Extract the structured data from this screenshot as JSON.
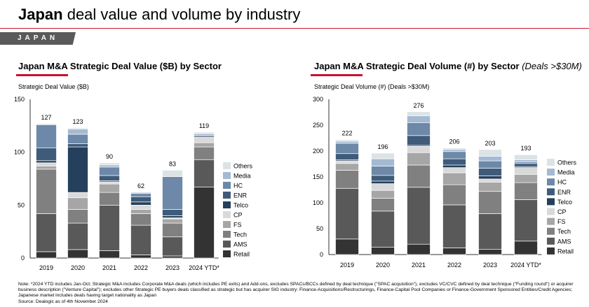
{
  "header": {
    "title_bold": "Japan",
    "title_rest": " deal value and volume by industry",
    "region": "JAPAN"
  },
  "colors": {
    "accent": "#c8102e",
    "Retail": "#333333",
    "AMS": "#595959",
    "Tech": "#808080",
    "FS": "#a6a6a6",
    "CP": "#d9d9d9",
    "Telco": "#25405c",
    "ENR": "#3f5b7a",
    "HC": "#6d88a8",
    "Media": "#a3bad2",
    "Others": "#dce3e6"
  },
  "chart_data": [
    {
      "type": "bar",
      "stacked": true,
      "title": "Japan M&A Strategic Deal Value ($B) by Sector",
      "ylabel": "Strategic Deal Value ($B)",
      "ylim": [
        0,
        150
      ],
      "yticks": [
        "0",
        "50",
        "100",
        "150"
      ],
      "categories": [
        "2019",
        "2020",
        "2021",
        "2022",
        "2023",
        "2024 YTD*"
      ],
      "totals": [
        "127",
        "123",
        "90",
        "62",
        "83",
        "119"
      ],
      "legend": "right",
      "series": [
        {
          "name": "Retail",
          "values": [
            6,
            8,
            7,
            3,
            2,
            67
          ]
        },
        {
          "name": "AMS",
          "values": [
            36,
            25,
            43,
            28,
            18,
            26
          ]
        },
        {
          "name": "Tech",
          "values": [
            42,
            13,
            12,
            11,
            13,
            12
          ]
        },
        {
          "name": "FS",
          "values": [
            3,
            11,
            8,
            4,
            4,
            4
          ]
        },
        {
          "name": "CP",
          "values": [
            3,
            5,
            2,
            4,
            1,
            5
          ]
        },
        {
          "name": "Telco",
          "values": [
            2,
            43,
            1,
            3,
            2,
            1
          ]
        },
        {
          "name": "ENR",
          "values": [
            12,
            3,
            5,
            5,
            6,
            1
          ]
        },
        {
          "name": "HC",
          "values": [
            22,
            9,
            8,
            3,
            31,
            1
          ]
        },
        {
          "name": "Media",
          "values": [
            0,
            5,
            2,
            1,
            0,
            1
          ]
        },
        {
          "name": "Others",
          "values": [
            1,
            1,
            2,
            0,
            6,
            1
          ]
        }
      ]
    },
    {
      "type": "bar",
      "stacked": true,
      "title": "Japan M&A Strategic Deal Volume (#) by Sector",
      "title_suffix": "(Deals >$30M)",
      "ylabel": "Strategic Deal Volume (#) (Deals >$30M)",
      "ylim": [
        0,
        300
      ],
      "yticks": [
        "0",
        "50",
        "100",
        "150",
        "200",
        "250",
        "300"
      ],
      "categories": [
        "2019",
        "2020",
        "2021",
        "2022",
        "2023",
        "2024 YTD*"
      ],
      "totals": [
        "222",
        "196",
        "276",
        "206",
        "203",
        "193"
      ],
      "legend": "right",
      "series": [
        {
          "name": "Retail",
          "values": [
            30,
            14,
            20,
            13,
            10,
            26
          ]
        },
        {
          "name": "AMS",
          "values": [
            98,
            70,
            110,
            83,
            69,
            80
          ]
        },
        {
          "name": "Tech",
          "values": [
            35,
            25,
            43,
            39,
            43,
            33
          ]
        },
        {
          "name": "FS",
          "values": [
            13,
            15,
            24,
            23,
            18,
            16
          ]
        },
        {
          "name": "CP",
          "values": [
            5,
            13,
            12,
            10,
            6,
            13
          ]
        },
        {
          "name": "Telco",
          "values": [
            2,
            5,
            2,
            5,
            6,
            2
          ]
        },
        {
          "name": "ENR",
          "values": [
            12,
            11,
            19,
            12,
            15,
            6
          ]
        },
        {
          "name": "HC",
          "values": [
            20,
            18,
            25,
            14,
            14,
            3
          ]
        },
        {
          "name": "Media",
          "values": [
            4,
            14,
            13,
            4,
            9,
            4
          ]
        },
        {
          "name": "Others",
          "values": [
            3,
            11,
            8,
            3,
            13,
            10
          ]
        }
      ]
    }
  ],
  "footer": {
    "note": "Note: *2024 YTD includes Jan-Oct; Strategic M&A includes Corporate M&A deals (which includes PE exits) and Add-ons, excludes SPACs/BCCs defined by deal technique (\"SPAC acquisition\"), excludes VC/CVC defined by deal technique (\"Funding round\") or acquirer business description (\"Venture Capital\"); excludes other Strategic PE buyers deals classified as strategic but has acquirer SIG industry: Finance-Acquisitions/Restructurings, Finance-Capital Pool Companies or Finance-Government Sponsored Entities/Credit Agencies; Japanese market includes deals having target nationality as Japan",
    "source": "Source: Dealogic as of 4th November 2024"
  }
}
